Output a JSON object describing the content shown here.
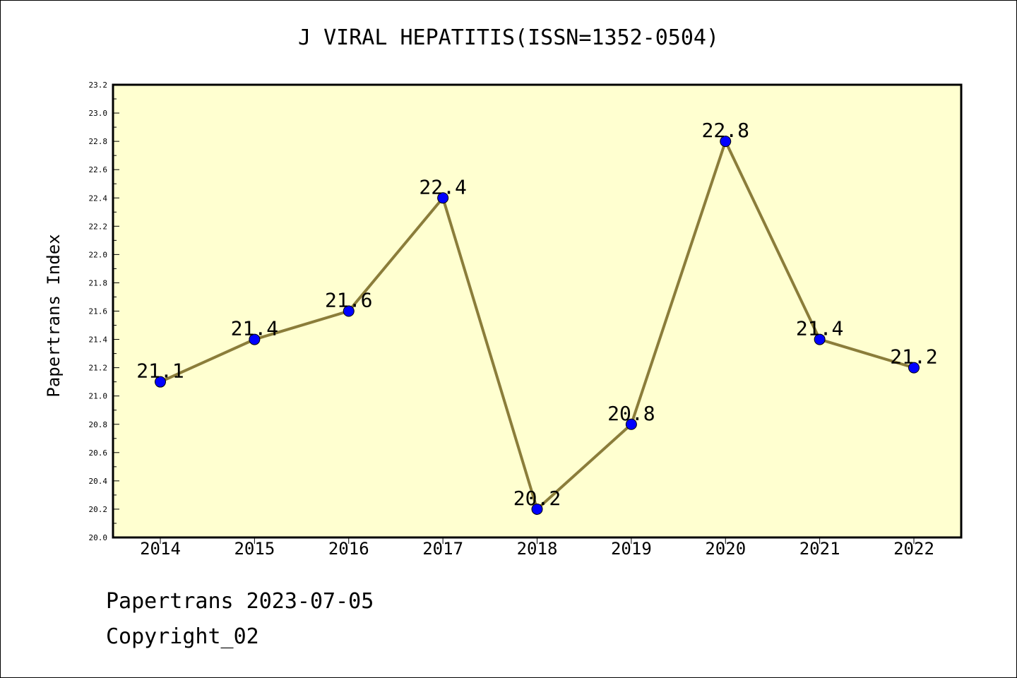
{
  "title": "J VIRAL HEPATITIS(ISSN=1352-0504)",
  "footer": {
    "date_line": "Papertrans 2023-07-05",
    "copyright_line": "Copyright_02"
  },
  "colors": {
    "plot_background": "#FFFFD0",
    "line": "#8B7D3A",
    "marker": "#0000FF"
  },
  "chart_data": {
    "type": "line",
    "title": "J VIRAL HEPATITIS(ISSN=1352-0504)",
    "xlabel": "",
    "ylabel": "Papertrans Index",
    "categories": [
      "2014",
      "2015",
      "2016",
      "2017",
      "2018",
      "2019",
      "2020",
      "2021",
      "2022"
    ],
    "series": [
      {
        "values": [
          21.1,
          21.4,
          21.6,
          22.4,
          20.2,
          20.8,
          22.8,
          21.4,
          21.2
        ]
      }
    ],
    "data_labels": [
      "21.1",
      "21.4",
      "21.6",
      "22.4",
      "20.2",
      "20.8",
      "22.8",
      "21.4",
      "21.2"
    ],
    "ylim": [
      20.0,
      23.2
    ],
    "yticks": [
      "20.0",
      "20.2",
      "20.4",
      "20.6",
      "20.8",
      "21.0",
      "21.2",
      "21.4",
      "21.6",
      "21.8",
      "22.0",
      "22.2",
      "22.4",
      "22.6",
      "22.8",
      "23.0",
      "23.2"
    ],
    "grid": false,
    "legend": "none"
  }
}
